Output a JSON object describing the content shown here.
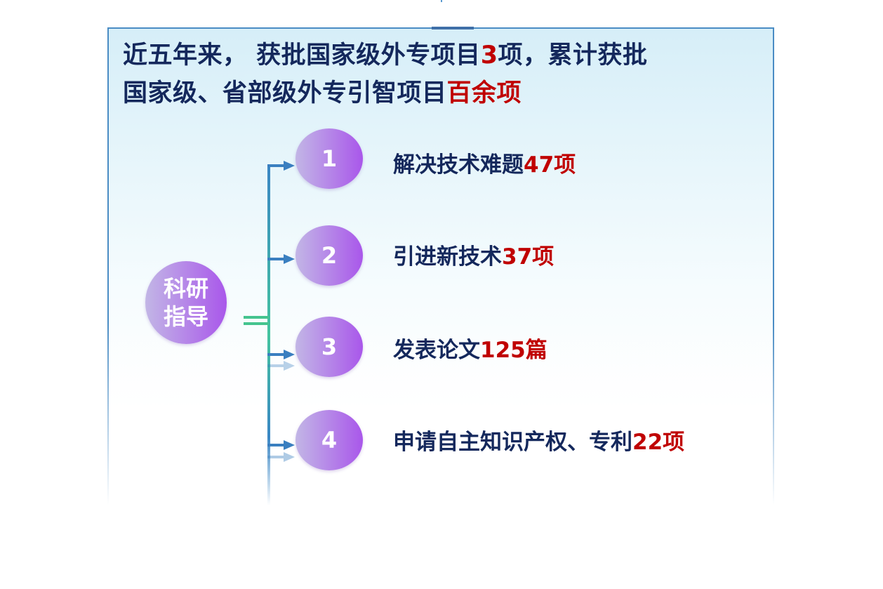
{
  "title": {
    "line1_a": "近五年来， 获批国家级外专项目",
    "line1_num": "3",
    "line1_b": "项，累计获批",
    "line2_a": "国家级、省部级外专引智项目",
    "line2_highlight": "百余项"
  },
  "center_node": {
    "line1": "科研",
    "line2": "指导"
  },
  "items": [
    {
      "number": "1",
      "text": "解决技术难题",
      "value": "47项"
    },
    {
      "number": "2",
      "text": "引进新技术",
      "value": "37项"
    },
    {
      "number": "3",
      "text": "发表论文",
      "value": "125篇"
    },
    {
      "number": "4",
      "text": "申请自主知识产权、专利",
      "value": "22项"
    }
  ],
  "colors": {
    "text": "#14285c",
    "highlight": "#c00000",
    "node_gradient_start": "#c2b6e6",
    "node_gradient_end": "#a957ea",
    "connector": "#3a86c4",
    "connector_green": "#45c48f"
  }
}
